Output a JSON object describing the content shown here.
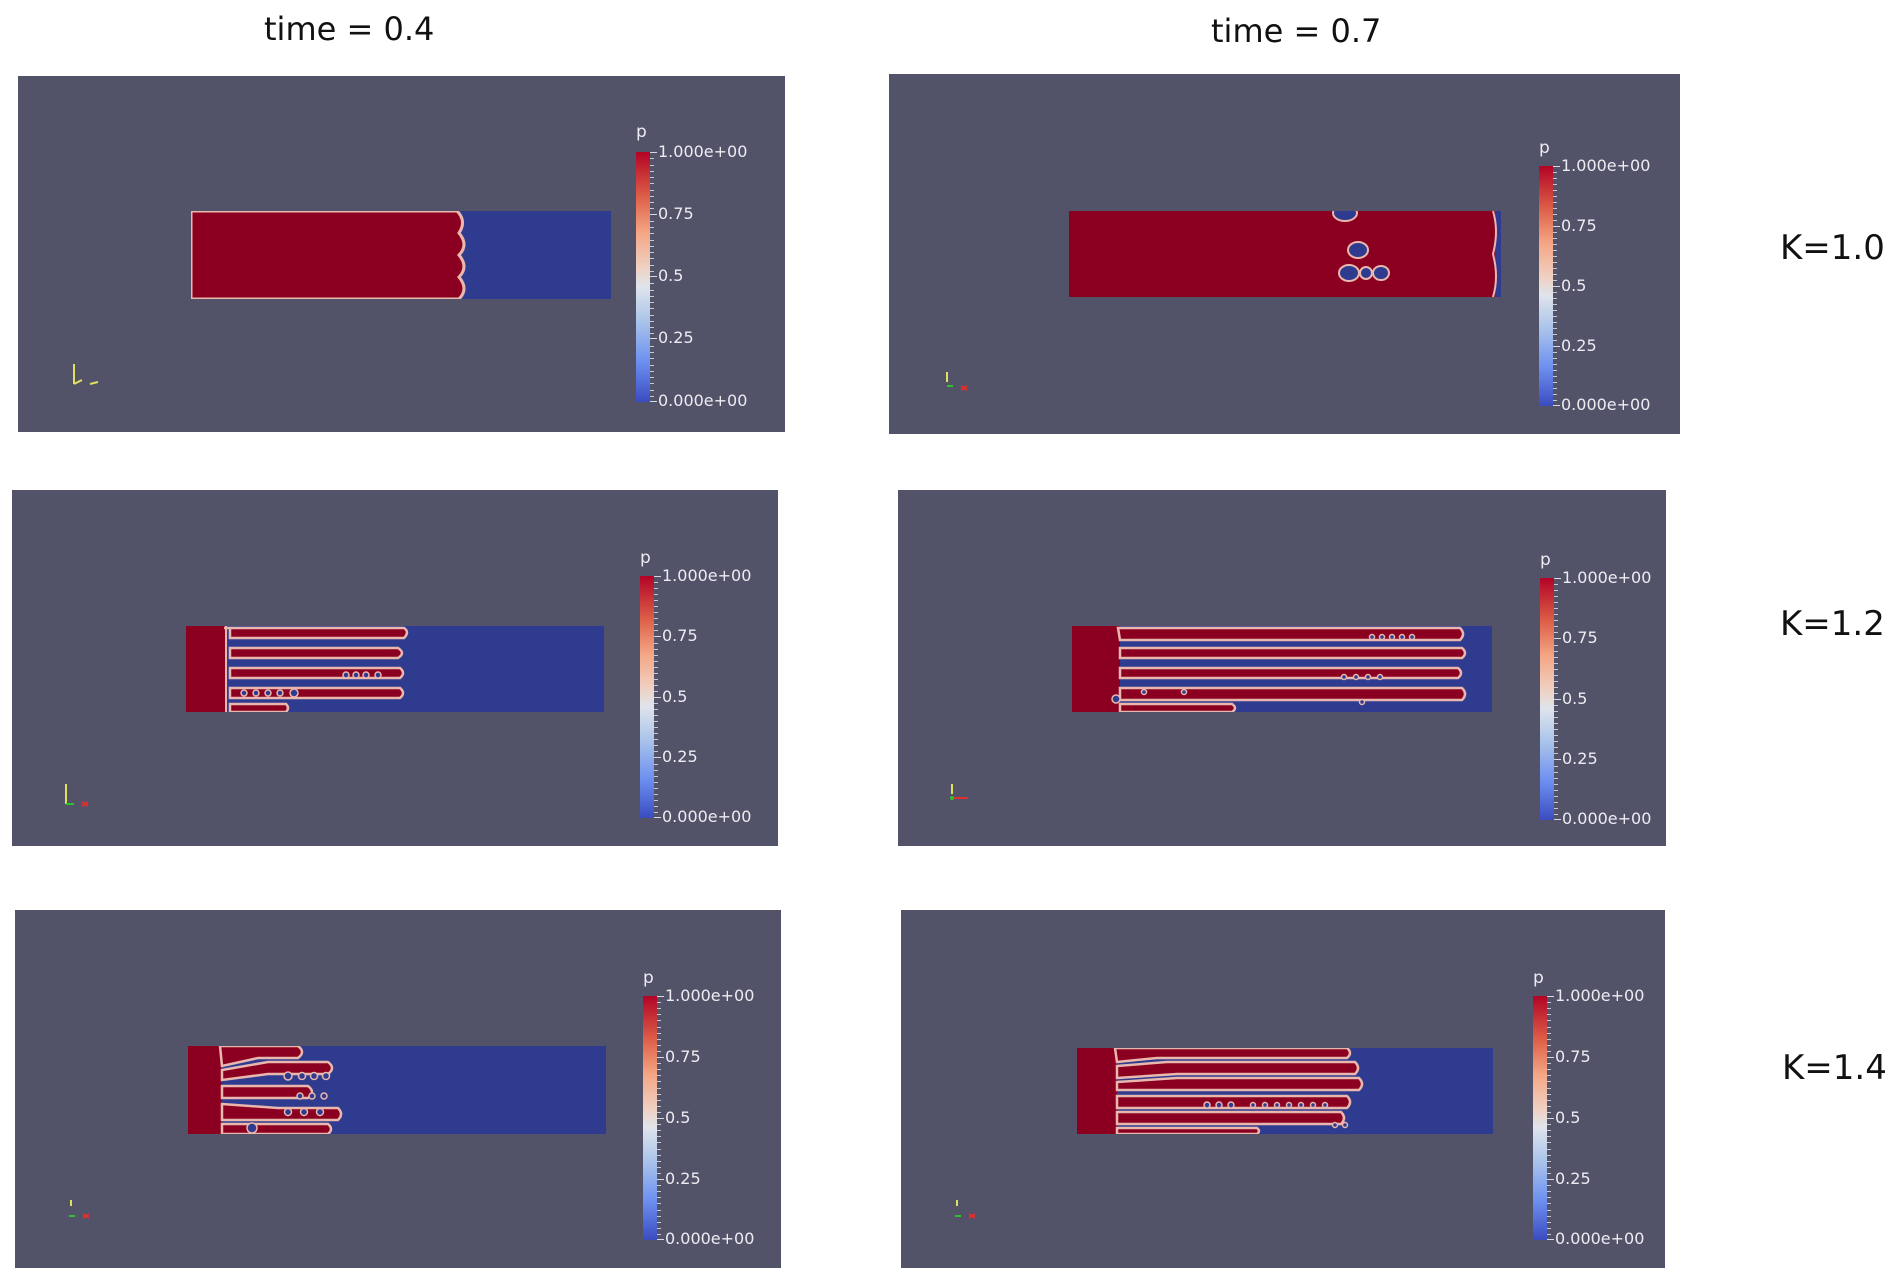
{
  "columns": [
    {
      "title": "time = 0.4"
    },
    {
      "title": "time = 0.7"
    }
  ],
  "rows": [
    {
      "label": "K=1.0"
    },
    {
      "label": "K=1.2"
    },
    {
      "label": "K=1.4"
    }
  ],
  "colorbar": {
    "title": "p",
    "ticks": [
      "1.000e+00",
      "0.75",
      "0.5",
      "0.25",
      "0.000e+00"
    ],
    "max_color": "#b30326",
    "min_color": "#3b4cc0"
  },
  "colors": {
    "background": "#525369",
    "high_phase": "#8b0020",
    "low_phase": "#2e3b8f"
  },
  "panels": [
    {
      "row": 0,
      "col": 0,
      "front_fraction": 0.64
    },
    {
      "row": 0,
      "col": 1,
      "front_fraction": 1.0
    },
    {
      "row": 1,
      "col": 0,
      "front_fraction": 0.52
    },
    {
      "row": 1,
      "col": 1,
      "front_fraction": 0.92
    },
    {
      "row": 2,
      "col": 0,
      "front_fraction": 0.38
    },
    {
      "row": 2,
      "col": 1,
      "front_fraction": 0.66
    }
  ]
}
